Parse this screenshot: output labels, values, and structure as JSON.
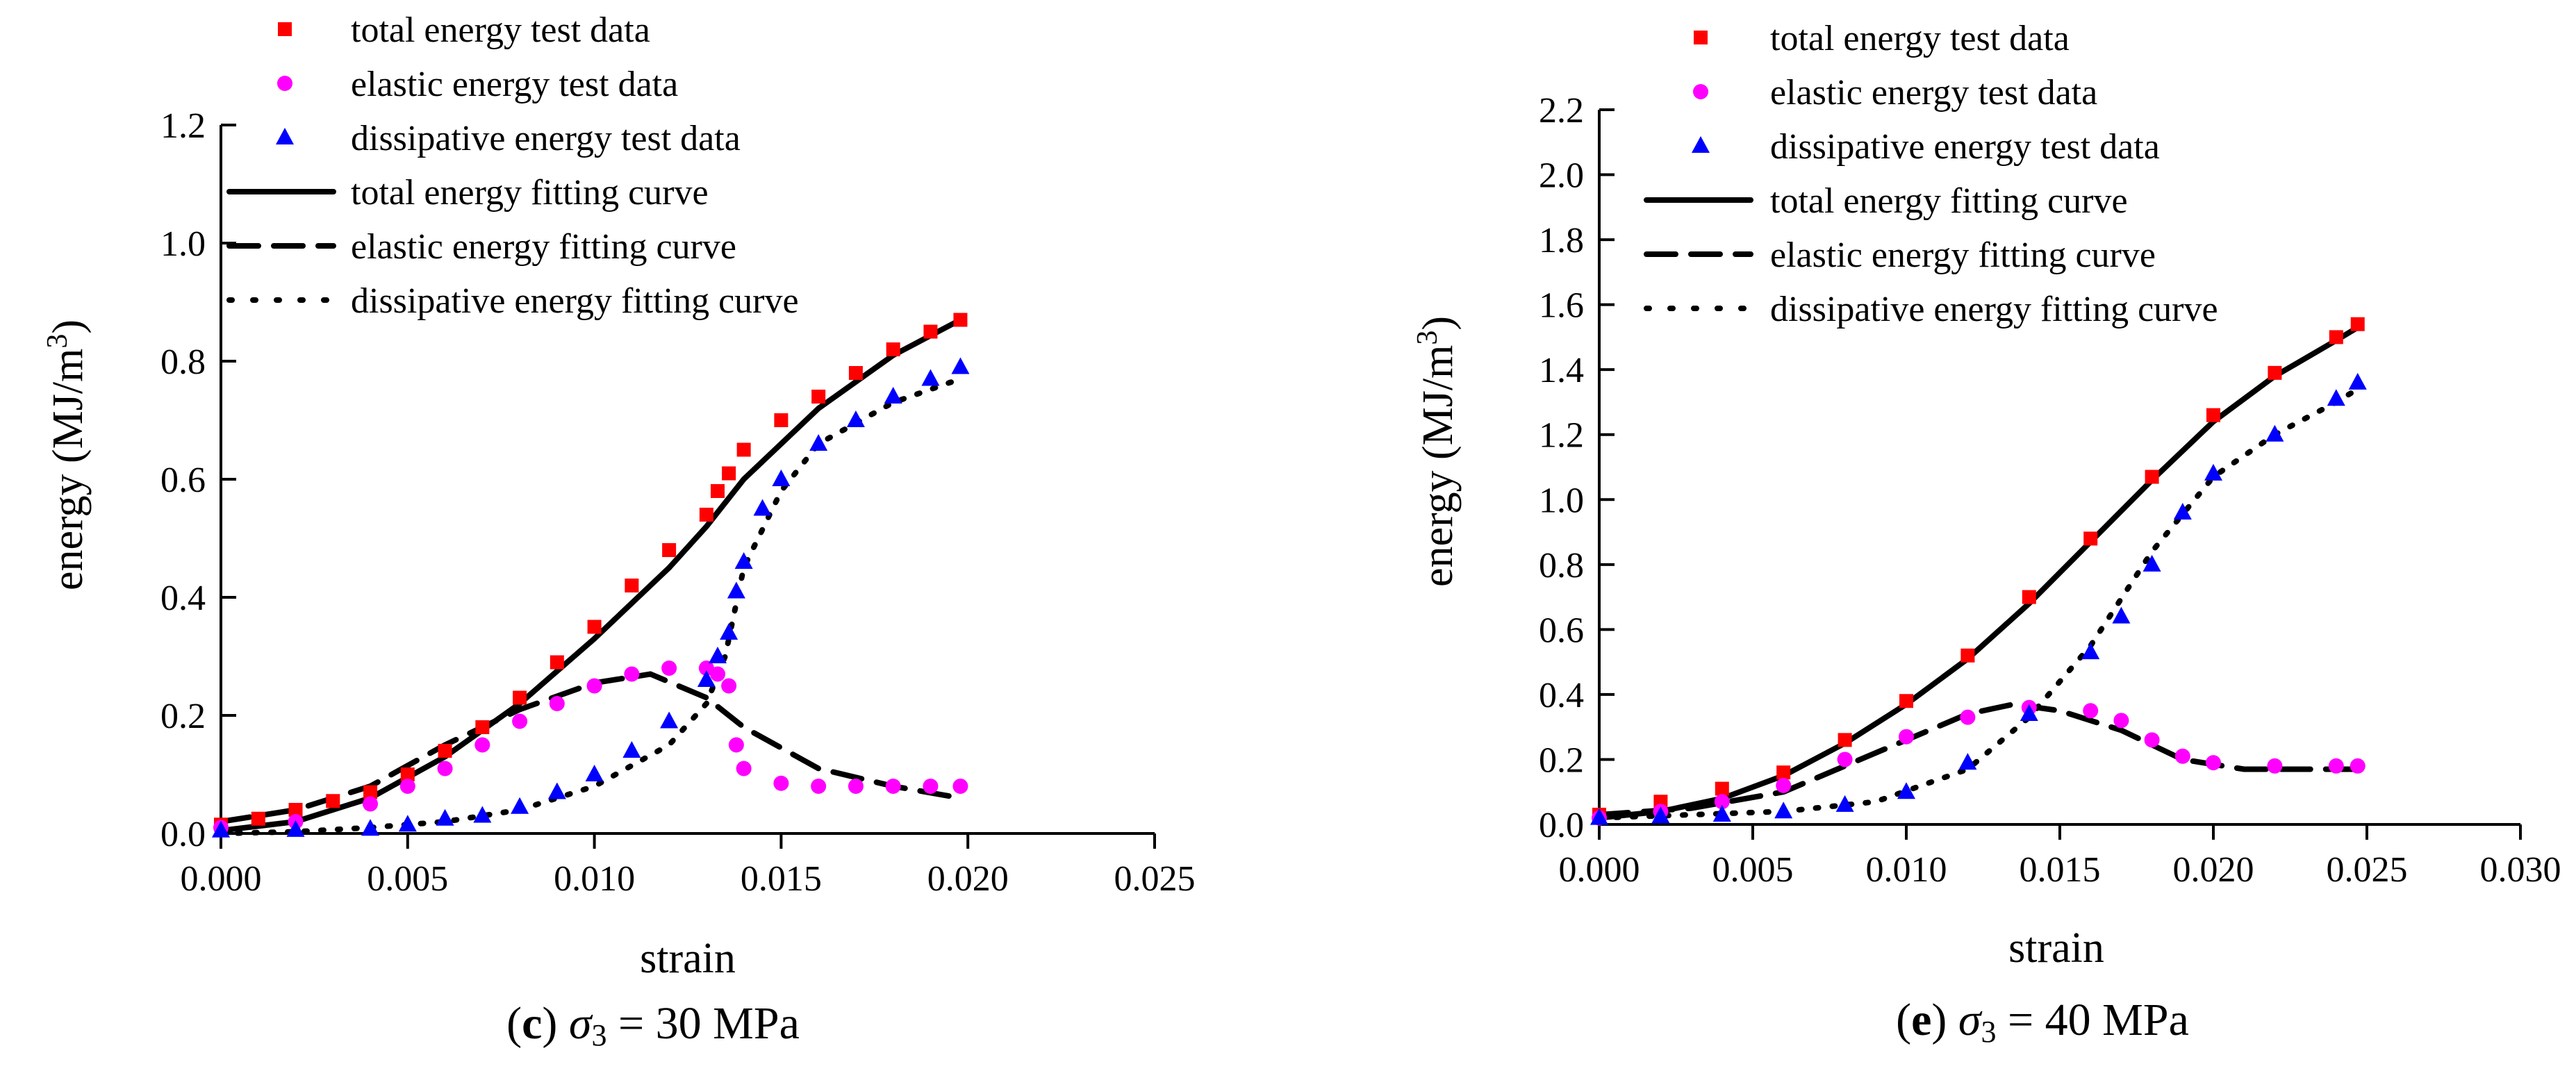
{
  "colors": {
    "total": "#ff0000",
    "elastic": "#ff00ff",
    "dissipative": "#0000ff",
    "axis": "#000000"
  },
  "chart_data": [
    {
      "type": "scatter",
      "caption": {
        "letter": "c",
        "sigma": "σ",
        "sub": "3",
        "rest": " = 30 MPa"
      },
      "xlabel": "strain",
      "ylabel": {
        "main": "energy (MJ/m",
        "sup": "3",
        "close": ")"
      },
      "xlim": [
        0,
        0.025
      ],
      "ylim": [
        0,
        1.2
      ],
      "xticks": [
        0.0,
        0.005,
        0.01,
        0.015,
        0.02,
        0.025
      ],
      "xtick_labels": [
        "0.000",
        "0.005",
        "0.010",
        "0.015",
        "0.020",
        "0.025"
      ],
      "yticks": [
        0.0,
        0.2,
        0.4,
        0.6,
        0.8,
        1.0,
        1.2
      ],
      "ytick_labels": [
        "0.0",
        "0.2",
        "0.4",
        "0.6",
        "0.8",
        "1.0",
        "1.2"
      ],
      "legend": [
        {
          "key": "total_pts",
          "kind": "square",
          "label": "total energy test data"
        },
        {
          "key": "elastic_pts",
          "kind": "circle",
          "label": "elastic energy test data"
        },
        {
          "key": "diss_pts",
          "kind": "triangle",
          "label": "dissipative energy test data"
        },
        {
          "key": "total_fit",
          "kind": "solid",
          "label": "total energy fitting curve"
        },
        {
          "key": "elastic_fit",
          "kind": "dash",
          "label": "elastic energy fitting curve"
        },
        {
          "key": "diss_fit",
          "kind": "dot",
          "label": "dissipative energy fitting curve"
        }
      ],
      "series": {
        "total_pts": {
          "x": [
            0.0,
            0.001,
            0.002,
            0.003,
            0.004,
            0.005,
            0.006,
            0.007,
            0.008,
            0.009,
            0.01,
            0.011,
            0.012,
            0.013,
            0.0133,
            0.0136,
            0.014,
            0.015,
            0.016,
            0.017,
            0.018,
            0.019,
            0.0198
          ],
          "y": [
            0.015,
            0.025,
            0.04,
            0.055,
            0.07,
            0.1,
            0.14,
            0.18,
            0.23,
            0.29,
            0.35,
            0.42,
            0.48,
            0.54,
            0.58,
            0.61,
            0.65,
            0.7,
            0.74,
            0.78,
            0.82,
            0.85,
            0.87
          ]
        },
        "elastic_pts": {
          "x": [
            0.0,
            0.002,
            0.004,
            0.005,
            0.006,
            0.007,
            0.008,
            0.009,
            0.01,
            0.011,
            0.012,
            0.013,
            0.0133,
            0.0136,
            0.0138,
            0.014,
            0.015,
            0.016,
            0.017,
            0.018,
            0.019,
            0.0198
          ],
          "y": [
            0.01,
            0.02,
            0.05,
            0.08,
            0.11,
            0.15,
            0.19,
            0.22,
            0.25,
            0.27,
            0.28,
            0.28,
            0.27,
            0.25,
            0.15,
            0.11,
            0.085,
            0.08,
            0.08,
            0.08,
            0.08,
            0.08
          ]
        },
        "diss_pts": {
          "x": [
            0.0,
            0.002,
            0.004,
            0.005,
            0.006,
            0.007,
            0.008,
            0.009,
            0.01,
            0.011,
            0.012,
            0.013,
            0.0133,
            0.0136,
            0.0138,
            0.014,
            0.0145,
            0.015,
            0.016,
            0.017,
            0.018,
            0.019,
            0.0198
          ],
          "y": [
            0.005,
            0.006,
            0.008,
            0.015,
            0.025,
            0.03,
            0.045,
            0.07,
            0.1,
            0.14,
            0.19,
            0.26,
            0.3,
            0.34,
            0.41,
            0.46,
            0.55,
            0.6,
            0.66,
            0.7,
            0.74,
            0.77,
            0.79
          ]
        },
        "total_fit": {
          "x": [
            0.0,
            0.002,
            0.004,
            0.006,
            0.008,
            0.01,
            0.012,
            0.013,
            0.014,
            0.016,
            0.018,
            0.0198
          ],
          "y": [
            0.005,
            0.02,
            0.06,
            0.13,
            0.22,
            0.33,
            0.45,
            0.52,
            0.6,
            0.72,
            0.81,
            0.87
          ]
        },
        "elastic_fit": {
          "x": [
            0.0,
            0.002,
            0.004,
            0.006,
            0.008,
            0.01,
            0.0115,
            0.013,
            0.014,
            0.016,
            0.018,
            0.0198
          ],
          "y": [
            0.02,
            0.04,
            0.08,
            0.15,
            0.21,
            0.255,
            0.27,
            0.23,
            0.18,
            0.11,
            0.08,
            0.06
          ]
        },
        "diss_fit": {
          "x": [
            0.0,
            0.002,
            0.004,
            0.006,
            0.008,
            0.01,
            0.012,
            0.013,
            0.0135,
            0.014,
            0.015,
            0.016,
            0.018,
            0.0198
          ],
          "y": [
            0.0,
            0.003,
            0.01,
            0.02,
            0.04,
            0.08,
            0.15,
            0.22,
            0.3,
            0.45,
            0.58,
            0.66,
            0.73,
            0.77
          ]
        }
      }
    },
    {
      "type": "scatter",
      "caption": {
        "letter": "e",
        "sigma": "σ",
        "sub": "3",
        "rest": " = 40 MPa"
      },
      "xlabel": "strain",
      "ylabel": {
        "main": "energy (MJ/m",
        "sup": "3",
        "close": ")"
      },
      "xlim": [
        0,
        0.03
      ],
      "ylim": [
        0,
        2.2
      ],
      "xticks": [
        0.0,
        0.005,
        0.01,
        0.015,
        0.02,
        0.025,
        0.03
      ],
      "xtick_labels": [
        "0.000",
        "0.005",
        "0.010",
        "0.015",
        "0.020",
        "0.025",
        "0.030"
      ],
      "yticks": [
        0.0,
        0.2,
        0.4,
        0.6,
        0.8,
        1.0,
        1.2,
        1.4,
        1.6,
        1.8,
        2.0,
        2.2
      ],
      "ytick_labels": [
        "0.0",
        "0.2",
        "0.4",
        "0.6",
        "0.8",
        "1.0",
        "1.2",
        "1.4",
        "1.6",
        "1.8",
        "2.0",
        "2.2"
      ],
      "legend": [
        {
          "key": "total_pts",
          "kind": "square",
          "label": "total energy test data"
        },
        {
          "key": "elastic_pts",
          "kind": "circle",
          "label": "elastic energy test data"
        },
        {
          "key": "diss_pts",
          "kind": "triangle",
          "label": "dissipative energy test data"
        },
        {
          "key": "total_fit",
          "kind": "solid",
          "label": "total energy fitting curve"
        },
        {
          "key": "elastic_fit",
          "kind": "dash",
          "label": "elastic energy fitting curve"
        },
        {
          "key": "diss_fit",
          "kind": "dot",
          "label": "dissipative energy fitting curve"
        }
      ],
      "series": {
        "total_pts": {
          "x": [
            0.0,
            0.002,
            0.004,
            0.006,
            0.008,
            0.01,
            0.012,
            0.014,
            0.016,
            0.018,
            0.02,
            0.022,
            0.024,
            0.0247
          ],
          "y": [
            0.03,
            0.07,
            0.11,
            0.16,
            0.26,
            0.38,
            0.52,
            0.7,
            0.88,
            1.07,
            1.26,
            1.39,
            1.5,
            1.54
          ]
        },
        "elastic_pts": {
          "x": [
            0.0,
            0.002,
            0.004,
            0.006,
            0.008,
            0.01,
            0.012,
            0.014,
            0.016,
            0.017,
            0.018,
            0.019,
            0.02,
            0.022,
            0.024,
            0.0247
          ],
          "y": [
            0.02,
            0.04,
            0.07,
            0.12,
            0.2,
            0.27,
            0.33,
            0.36,
            0.35,
            0.32,
            0.26,
            0.21,
            0.19,
            0.18,
            0.18,
            0.18
          ]
        },
        "diss_pts": {
          "x": [
            0.0,
            0.002,
            0.004,
            0.006,
            0.008,
            0.01,
            0.012,
            0.014,
            0.016,
            0.017,
            0.018,
            0.019,
            0.02,
            0.022,
            0.024,
            0.0247
          ],
          "y": [
            0.02,
            0.025,
            0.03,
            0.04,
            0.06,
            0.1,
            0.19,
            0.34,
            0.53,
            0.64,
            0.8,
            0.96,
            1.08,
            1.2,
            1.31,
            1.36
          ]
        },
        "total_fit": {
          "x": [
            0.0,
            0.002,
            0.004,
            0.006,
            0.008,
            0.01,
            0.012,
            0.014,
            0.016,
            0.018,
            0.02,
            0.022,
            0.024,
            0.0247
          ],
          "y": [
            0.02,
            0.04,
            0.08,
            0.15,
            0.25,
            0.37,
            0.51,
            0.68,
            0.87,
            1.06,
            1.24,
            1.38,
            1.49,
            1.53
          ]
        },
        "elastic_fit": {
          "x": [
            0.0,
            0.003,
            0.006,
            0.009,
            0.012,
            0.0135,
            0.015,
            0.017,
            0.019,
            0.021,
            0.023,
            0.0247
          ],
          "y": [
            0.03,
            0.05,
            0.1,
            0.22,
            0.34,
            0.37,
            0.35,
            0.29,
            0.2,
            0.17,
            0.17,
            0.17
          ]
        },
        "diss_fit": {
          "x": [
            0.0,
            0.003,
            0.006,
            0.009,
            0.012,
            0.014,
            0.016,
            0.018,
            0.02,
            0.022,
            0.024,
            0.0247
          ],
          "y": [
            0.02,
            0.03,
            0.04,
            0.07,
            0.17,
            0.33,
            0.55,
            0.84,
            1.07,
            1.2,
            1.3,
            1.34
          ]
        }
      }
    }
  ]
}
